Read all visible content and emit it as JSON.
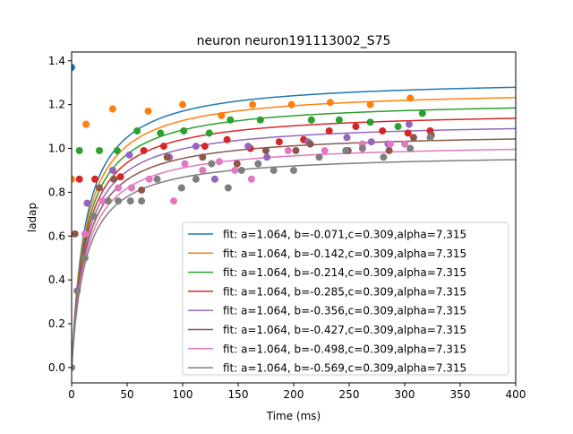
{
  "chart_data": {
    "type": "line",
    "title": "neuron neuron191113002_S75",
    "xlabel": "Time (ms)",
    "ylabel": "ladap",
    "xlim": [
      0,
      400
    ],
    "ylim": [
      -0.07,
      1.44
    ],
    "xticks": [
      0,
      50,
      100,
      150,
      200,
      250,
      300,
      350,
      400
    ],
    "yticks": [
      0.0,
      0.2,
      0.4,
      0.6,
      0.8,
      1.0,
      1.2,
      1.4
    ],
    "grid": false,
    "legend_position": "lower-right",
    "fit_model": {
      "a": 1.064,
      "c": 0.309,
      "alpha": 7.315
    },
    "series": [
      {
        "name": "fit: a=1.064, b=-0.071,c=0.309,alpha=7.315",
        "color": "#1f77b4",
        "b": -0.071,
        "points": [
          [
            0,
            1.37
          ]
        ]
      },
      {
        "name": "fit: a=1.064, b=-0.142,c=0.309,alpha=7.315",
        "color": "#ff7f0e",
        "b": -0.142,
        "points": [
          [
            0,
            0.86
          ],
          [
            13,
            1.11
          ],
          [
            37,
            1.18
          ],
          [
            69,
            1.17
          ],
          [
            100,
            1.2
          ],
          [
            135,
            1.15
          ],
          [
            163,
            1.2
          ],
          [
            198,
            1.2
          ],
          [
            233,
            1.21
          ],
          [
            269,
            1.2
          ],
          [
            305,
            1.23
          ]
        ]
      },
      {
        "name": "fit: a=1.064, b=-0.214,c=0.309,alpha=7.315",
        "color": "#2ca02c",
        "b": -0.214,
        "points": [
          [
            7,
            0.99
          ],
          [
            25,
            0.99
          ],
          [
            41,
            0.99
          ],
          [
            59,
            1.08
          ],
          [
            80,
            1.07
          ],
          [
            101,
            1.08
          ],
          [
            124,
            1.07
          ],
          [
            143,
            1.13
          ],
          [
            170,
            1.13
          ],
          [
            216,
            1.13
          ],
          [
            241,
            1.13
          ],
          [
            269,
            1.12
          ],
          [
            294,
            1.1
          ],
          [
            316,
            1.16
          ]
        ]
      },
      {
        "name": "fit: a=1.064, b=-0.285,c=0.309,alpha=7.315",
        "color": "#d62728",
        "b": -0.285,
        "points": [
          [
            7,
            0.86
          ],
          [
            21,
            0.86
          ],
          [
            44,
            0.87
          ],
          [
            65,
            0.99
          ],
          [
            83,
            1.01
          ],
          [
            120,
            1.01
          ],
          [
            140,
            1.04
          ],
          [
            161,
            1.0
          ],
          [
            187,
            1.03
          ],
          [
            209,
            1.04
          ],
          [
            232,
            1.08
          ],
          [
            256,
            1.1
          ],
          [
            280,
            1.08
          ],
          [
            303,
            1.07
          ],
          [
            323,
            1.08
          ]
        ]
      },
      {
        "name": "fit: a=1.064, b=-0.356,c=0.309,alpha=7.315",
        "color": "#9467bd",
        "b": -0.356,
        "points": [
          [
            14,
            0.75
          ],
          [
            37,
            0.9
          ],
          [
            52,
            0.97
          ],
          [
            88,
            0.96
          ],
          [
            112,
            1.01
          ],
          [
            129,
            0.86
          ],
          [
            159,
            1.01
          ],
          [
            176,
            0.96
          ],
          [
            213,
            1.03
          ],
          [
            248,
            1.05
          ],
          [
            270,
            1.03
          ],
          [
            285,
            1.02
          ],
          [
            304,
            1.11
          ]
        ]
      },
      {
        "name": "fit: a=1.064, b=-0.427,c=0.309,alpha=7.315",
        "color": "#8c564b",
        "b": -0.427,
        "points": [
          [
            3,
            0.61
          ],
          [
            25,
            0.82
          ],
          [
            38,
            0.86
          ],
          [
            63,
            0.81
          ],
          [
            86,
            0.96
          ],
          [
            118,
            0.96
          ],
          [
            149,
            0.93
          ],
          [
            175,
            0.99
          ],
          [
            202,
            0.99
          ],
          [
            215,
            1.02
          ],
          [
            249,
            0.99
          ],
          [
            286,
            0.99
          ],
          [
            308,
            1.05
          ],
          [
            324,
            1.06
          ]
        ]
      },
      {
        "name": "fit: a=1.064, b=-0.498,c=0.309,alpha=7.315",
        "color": "#e377c2",
        "b": -0.498,
        "points": [
          [
            12,
            0.61
          ],
          [
            28,
            0.76
          ],
          [
            42,
            0.82
          ],
          [
            54,
            0.82
          ],
          [
            70,
            0.86
          ],
          [
            92,
            0.76
          ],
          [
            102,
            0.93
          ],
          [
            118,
            0.9
          ],
          [
            133,
            0.94
          ],
          [
            147,
            0.9
          ],
          [
            162,
            0.86
          ],
          [
            195,
            0.99
          ],
          [
            228,
            0.99
          ],
          [
            262,
            1.02
          ],
          [
            287,
            1.02
          ],
          [
            300,
            1.02
          ]
        ]
      },
      {
        "name": "fit: a=1.064, b=-0.569,c=0.309,alpha=7.315",
        "color": "#7f7f7f",
        "b": -0.569,
        "points": [
          [
            0,
            0.0
          ],
          [
            5,
            0.35
          ],
          [
            12,
            0.5
          ],
          [
            20,
            0.69
          ],
          [
            33,
            0.76
          ],
          [
            42,
            0.76
          ],
          [
            53,
            0.76
          ],
          [
            63,
            0.76
          ],
          [
            77,
            0.86
          ],
          [
            99,
            0.82
          ],
          [
            112,
            0.86
          ],
          [
            126,
            0.93
          ],
          [
            141,
            0.82
          ],
          [
            153,
            0.9
          ],
          [
            168,
            0.93
          ],
          [
            182,
            0.9
          ],
          [
            200,
            0.9
          ],
          [
            223,
            0.96
          ],
          [
            247,
            0.99
          ],
          [
            262,
            1.0
          ],
          [
            281,
            0.96
          ],
          [
            305,
            1.0
          ],
          [
            323,
            1.05
          ]
        ]
      }
    ]
  }
}
